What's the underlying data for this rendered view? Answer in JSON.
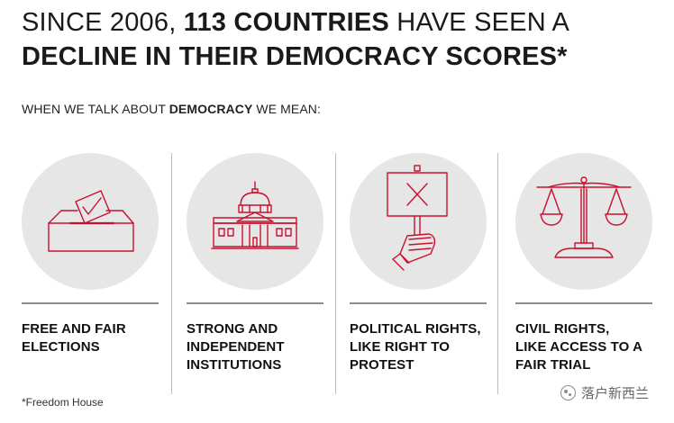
{
  "headline": {
    "line1_prefix": "SINCE 2006, ",
    "line1_bold": "113 COUNTRIES",
    "line1_suffix": " HAVE SEEN A",
    "line2_bold": "DECLINE IN THEIR DEMOCRACY SCORES*"
  },
  "lead": {
    "prefix": "WHEN WE TALK ABOUT ",
    "bold": "DEMOCRACY",
    "suffix": " WE MEAN:"
  },
  "items": [
    {
      "icon": "ballot-box-icon",
      "lines": [
        "FREE AND FAIR",
        "ELECTIONS"
      ]
    },
    {
      "icon": "capitol-building-icon",
      "lines": [
        "STRONG AND",
        "INDEPENDENT",
        "INSTITUTIONS"
      ]
    },
    {
      "icon": "protest-sign-icon",
      "lines": [
        "POLITICAL RIGHTS,",
        "LIKE RIGHT TO",
        "PROTEST"
      ]
    },
    {
      "icon": "scales-of-justice-icon",
      "lines": [
        "CIVIL RIGHTS,",
        "LIKE ACCESS TO A",
        "FAIR TRIAL"
      ]
    }
  ],
  "footnote": "*Freedom House",
  "watermark": "落户新西兰",
  "colors": {
    "icon_stroke": "#c8102e",
    "circle_fill": "#e6e6e6",
    "text": "#1a1a1a"
  }
}
